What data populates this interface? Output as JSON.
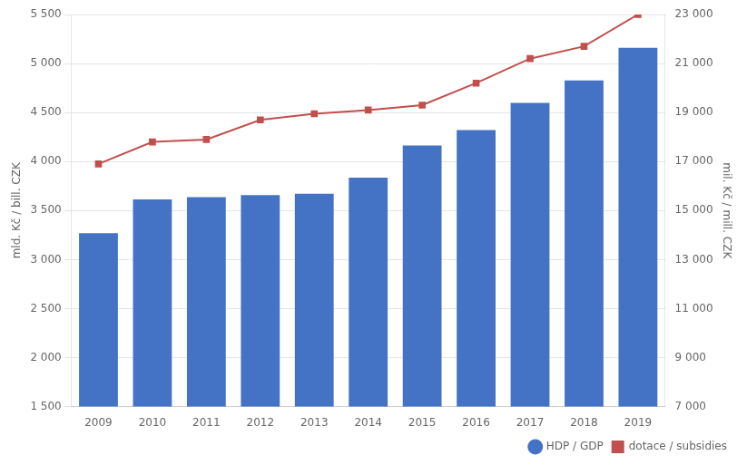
{
  "chart_data": {
    "type": "bar",
    "categories": [
      "2009",
      "2010",
      "2011",
      "2012",
      "2013",
      "2014",
      "2015",
      "2016",
      "2017",
      "2018",
      "2019"
    ],
    "series": [
      {
        "name": "HDP / GDP",
        "type": "bar",
        "color": "#4472C4",
        "values": [
          3270,
          3614,
          3637,
          3658,
          3672,
          3836,
          4163,
          4320,
          4599,
          4828,
          5161
        ]
      },
      {
        "name": "dotace / subsidies",
        "type": "line",
        "color": "#C0504D",
        "marker": "square",
        "axis": "y2",
        "values": [
          16900,
          17800,
          17900,
          18700,
          18950,
          19100,
          19300,
          20200,
          21200,
          21700,
          23000
        ]
      }
    ],
    "ylabel": "mld. Kč / bill. CZK",
    "y2label": "mil. Kč / mill. CZK",
    "ylim": [
      1500,
      5500
    ],
    "yticks": [
      {
        "value": 1500,
        "label": "1 500"
      },
      {
        "value": 2000,
        "label": "2 000"
      },
      {
        "value": 2500,
        "label": "2 500"
      },
      {
        "value": 3000,
        "label": "3 000"
      },
      {
        "value": 3500,
        "label": "3 500"
      },
      {
        "value": 4000,
        "label": "4 000"
      },
      {
        "value": 4500,
        "label": "4 500"
      },
      {
        "value": 5000,
        "label": "5 000"
      },
      {
        "value": 5500,
        "label": "5 500"
      }
    ],
    "y2lim": [
      7000,
      23000
    ],
    "y2ticks": [
      {
        "value": 7000,
        "label": "7 000"
      },
      {
        "value": 9000,
        "label": "9 000"
      },
      {
        "value": 11000,
        "label": "11 000"
      },
      {
        "value": 13000,
        "label": "13 000"
      },
      {
        "value": 15000,
        "label": "15 000"
      },
      {
        "value": 17000,
        "label": "17 000"
      },
      {
        "value": 19000,
        "label": "19 000"
      },
      {
        "value": 21000,
        "label": "21 000"
      },
      {
        "value": 23000,
        "label": "23 000"
      }
    ],
    "grid": true,
    "legend": "lower right"
  }
}
